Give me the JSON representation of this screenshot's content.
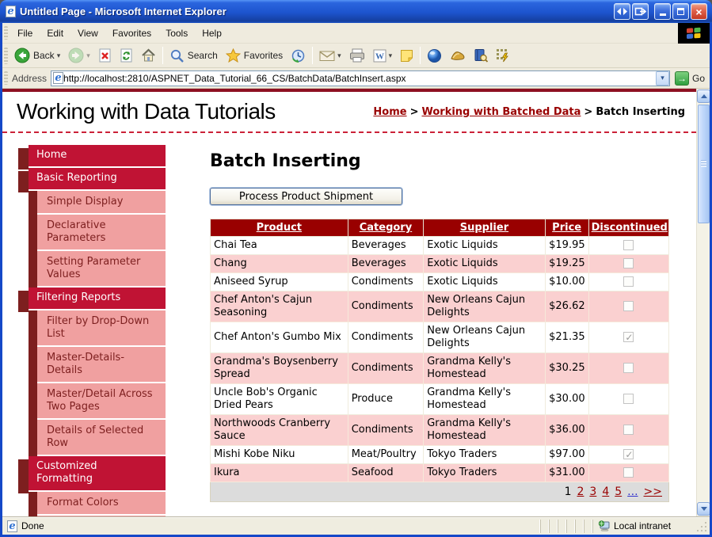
{
  "window": {
    "title": "Untitled Page - Microsoft Internet Explorer",
    "status_left": "Done",
    "status_zone": "Local intranet"
  },
  "menu": {
    "items": [
      "File",
      "Edit",
      "View",
      "Favorites",
      "Tools",
      "Help"
    ]
  },
  "toolbar": {
    "back_label": "Back",
    "search_label": "Search",
    "favorites_label": "Favorites",
    "icons": [
      "back",
      "forward",
      "stop",
      "refresh",
      "home",
      "search",
      "favorites",
      "history",
      "mail",
      "print",
      "edit-word",
      "notes",
      "sphere",
      "gold-addon",
      "research",
      "quick-links"
    ]
  },
  "address": {
    "label": "Address",
    "url": "http://localhost:2810/ASPNET_Data_Tutorial_66_CS/BatchData/BatchInsert.aspx",
    "go_label": "Go"
  },
  "masthead": {
    "site_title": "Working with Data Tutorials",
    "breadcrumb": {
      "home": "Home",
      "separator": ">",
      "section": "Working with Batched Data",
      "current": "Batch Inserting"
    }
  },
  "sidebar": {
    "items": [
      {
        "label": "Home",
        "level": "top"
      },
      {
        "label": "Basic Reporting",
        "level": "top"
      },
      {
        "label": "Simple Display",
        "level": "sub"
      },
      {
        "label": "Declarative Parameters",
        "level": "sub"
      },
      {
        "label": "Setting Parameter Values",
        "level": "sub"
      },
      {
        "label": "Filtering Reports",
        "level": "top"
      },
      {
        "label": "Filter by Drop-Down List",
        "level": "sub"
      },
      {
        "label": "Master-Details-Details",
        "level": "sub"
      },
      {
        "label": "Master/Detail Across Two Pages",
        "level": "sub"
      },
      {
        "label": "Details of Selected Row",
        "level": "sub"
      },
      {
        "label": "Customized Formatting",
        "level": "top"
      },
      {
        "label": "Format Colors",
        "level": "sub"
      },
      {
        "label": "",
        "level": "sub"
      }
    ]
  },
  "main": {
    "heading": "Batch Inserting",
    "button_label": "Process Product Shipment"
  },
  "table": {
    "columns": [
      "Product",
      "Category",
      "Supplier",
      "Price",
      "Discontinued"
    ],
    "rows": [
      {
        "product": "Chai Tea",
        "category": "Beverages",
        "supplier": "Exotic Liquids",
        "price": "$19.95",
        "discontinued": false
      },
      {
        "product": "Chang",
        "category": "Beverages",
        "supplier": "Exotic Liquids",
        "price": "$19.25",
        "discontinued": false
      },
      {
        "product": "Aniseed Syrup",
        "category": "Condiments",
        "supplier": "Exotic Liquids",
        "price": "$10.00",
        "discontinued": false
      },
      {
        "product": "Chef Anton's Cajun Seasoning",
        "category": "Condiments",
        "supplier": "New Orleans Cajun Delights",
        "price": "$26.62",
        "discontinued": false
      },
      {
        "product": "Chef Anton's Gumbo Mix",
        "category": "Condiments",
        "supplier": "New Orleans Cajun Delights",
        "price": "$21.35",
        "discontinued": true
      },
      {
        "product": "Grandma's Boysenberry Spread",
        "category": "Condiments",
        "supplier": "Grandma Kelly's Homestead",
        "price": "$30.25",
        "discontinued": false
      },
      {
        "product": "Uncle Bob's Organic Dried Pears",
        "category": "Produce",
        "supplier": "Grandma Kelly's Homestead",
        "price": "$30.00",
        "discontinued": false
      },
      {
        "product": "Northwoods Cranberry Sauce",
        "category": "Condiments",
        "supplier": "Grandma Kelly's Homestead",
        "price": "$36.00",
        "discontinued": false
      },
      {
        "product": "Mishi Kobe Niku",
        "category": "Meat/Poultry",
        "supplier": "Tokyo Traders",
        "price": "$97.00",
        "discontinued": true
      },
      {
        "product": "Ikura",
        "category": "Seafood",
        "supplier": "Tokyo Traders",
        "price": "$31.00",
        "discontinued": false
      }
    ],
    "pager": {
      "current": "1",
      "pages": [
        "2",
        "3",
        "4",
        "5"
      ],
      "ellipsis": "...",
      "next": ">>"
    }
  },
  "colors": {
    "titlebar_blue": "#1D54CE",
    "chrome_beige": "#EFEBDE",
    "table_header_bg": "#990000",
    "row_alt_bg": "#FAD0D0",
    "pager_bg": "#DCDCDC",
    "nav_top_bg": "#C01334",
    "nav_sub_bg": "#F0A0A0",
    "nav_dark_strip": "#7D1F1F",
    "link_maroon": "#990000",
    "pager_ellipsis_link": "#3333CC",
    "top_rule_red": "#8E1022"
  }
}
